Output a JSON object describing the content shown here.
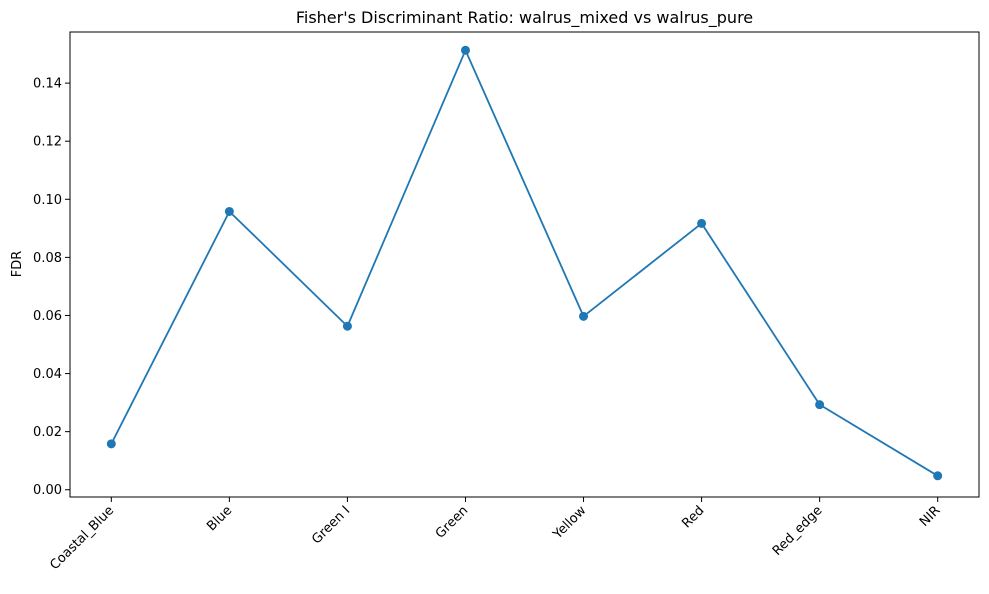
{
  "chart_data": {
    "type": "line",
    "title": "Fisher's Discriminant Ratio: walrus_mixed vs walrus_pure",
    "xlabel": "",
    "ylabel": "FDR",
    "categories": [
      "Coastal_Blue",
      "Blue",
      "Green I",
      "Green",
      "Yellow",
      "Red",
      "Red_edge",
      "NIR"
    ],
    "series": [
      {
        "values": [
          0.0158,
          0.0958,
          0.0563,
          0.1513,
          0.0597,
          0.0917,
          0.0293,
          0.0048
        ],
        "color": "#1f77b4",
        "marker": "circle"
      }
    ],
    "ylim": [
      -0.0025,
      0.1576
    ],
    "yticks": [
      0.0,
      0.02,
      0.04,
      0.06,
      0.08,
      0.1,
      0.12,
      0.14
    ],
    "ytick_labels": [
      "0.00",
      "0.02",
      "0.04",
      "0.06",
      "0.08",
      "0.10",
      "0.12",
      "0.14"
    ],
    "xtick_rotation": "45 degrees",
    "grid": false,
    "legend": "none"
  }
}
